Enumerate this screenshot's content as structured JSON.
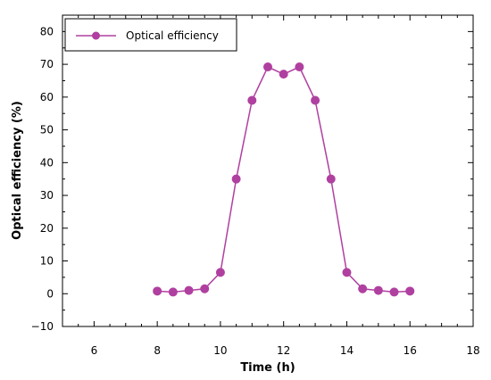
{
  "chart_data": {
    "type": "line",
    "title": "",
    "xlabel": "Time (h)",
    "ylabel": "Optical efficiency (%)",
    "xlim": [
      5,
      18
    ],
    "ylim": [
      -10,
      85
    ],
    "x_ticks": [
      6,
      8,
      10,
      12,
      14,
      16,
      18
    ],
    "y_ticks": [
      -10,
      0,
      10,
      20,
      30,
      40,
      50,
      60,
      70,
      80
    ],
    "grid": false,
    "legend_position": "top-left",
    "series": [
      {
        "name": "Optical efficiency",
        "color": "#b040a0",
        "marker": "circle",
        "x": [
          8,
          8.5,
          9,
          9.5,
          10,
          10.5,
          11,
          11.5,
          12,
          12.5,
          13,
          13.5,
          14,
          14.5,
          15,
          15.5,
          16
        ],
        "y": [
          0.8,
          0.5,
          1.0,
          1.5,
          6.5,
          35,
          59,
          69.2,
          67,
          69.2,
          59,
          35,
          6.5,
          1.5,
          1.0,
          0.5,
          0.8
        ]
      }
    ]
  }
}
